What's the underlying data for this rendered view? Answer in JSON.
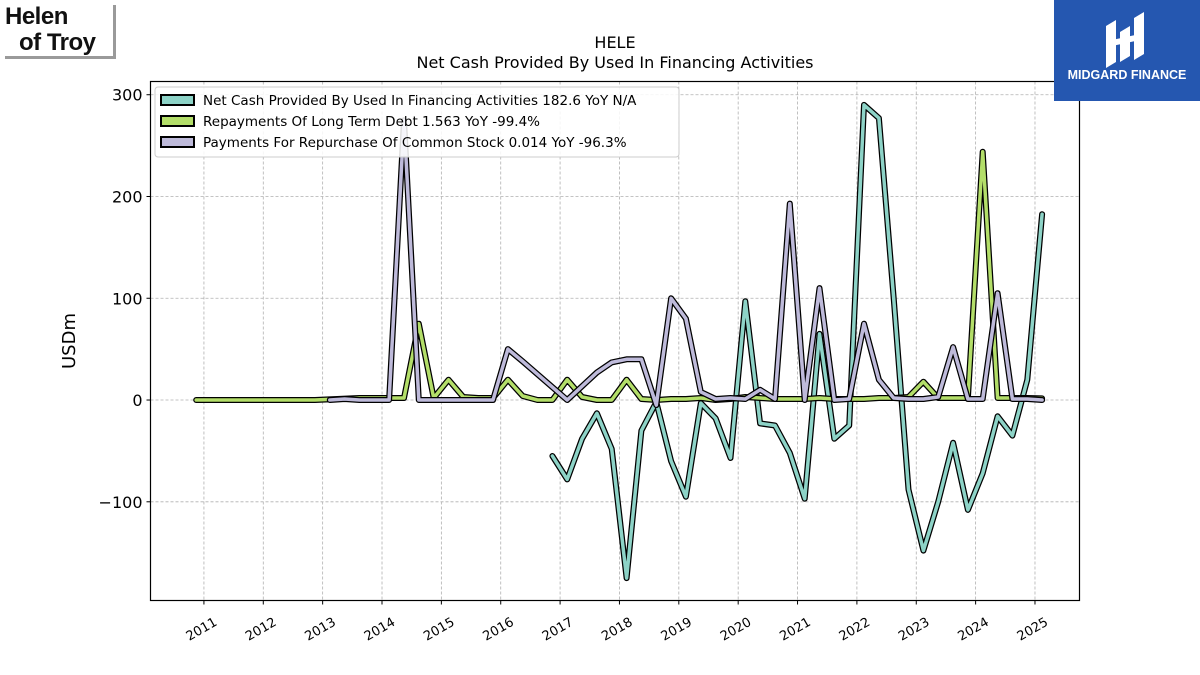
{
  "chart_data": {
    "type": "line",
    "title": "HELE",
    "subtitle": "Net Cash Provided By Used In Financing Activities",
    "ylabel": "USDm",
    "xlabel": "",
    "ylim": [
      -197,
      313
    ],
    "xlim": [
      2010.1,
      2025.75
    ],
    "yticks": [
      300,
      200,
      100,
      0,
      -100
    ],
    "ytick_labels": [
      "300",
      "200",
      "100",
      "0",
      "−100"
    ],
    "xticks": [
      2011,
      2012,
      2013,
      2014,
      2015,
      2016,
      2017,
      2018,
      2019,
      2020,
      2021,
      2022,
      2023,
      2024,
      2025
    ],
    "xtick_labels": [
      "2011",
      "2012",
      "2013",
      "2014",
      "2015",
      "2016",
      "2017",
      "2018",
      "2019",
      "2020",
      "2021",
      "2022",
      "2023",
      "2024",
      "2025"
    ],
    "grid": true,
    "legend_position": "top-left",
    "series": [
      {
        "name": "Net Cash Provided By Used In Financing Activities",
        "legend_label": "Net Cash Provided By Used In Financing Activities  182.6 YoY N/A",
        "color": "#8dd3c7",
        "points": [
          [
            2016.87,
            -55
          ],
          [
            2017.12,
            -78
          ],
          [
            2017.37,
            -38
          ],
          [
            2017.62,
            -13
          ],
          [
            2017.87,
            -48
          ],
          [
            2018.12,
            -175
          ],
          [
            2018.37,
            -30
          ],
          [
            2018.62,
            -2
          ],
          [
            2018.87,
            -60
          ],
          [
            2019.12,
            -95
          ],
          [
            2019.37,
            -3
          ],
          [
            2019.62,
            -18
          ],
          [
            2019.87,
            -57
          ],
          [
            2020.12,
            97
          ],
          [
            2020.37,
            -23
          ],
          [
            2020.62,
            -25
          ],
          [
            2020.87,
            -52
          ],
          [
            2021.12,
            -97
          ],
          [
            2021.37,
            65
          ],
          [
            2021.62,
            -38
          ],
          [
            2021.87,
            -25
          ],
          [
            2022.12,
            290
          ],
          [
            2022.37,
            277
          ],
          [
            2022.62,
            100
          ],
          [
            2022.87,
            -88
          ],
          [
            2023.12,
            -148
          ],
          [
            2023.37,
            -100
          ],
          [
            2023.62,
            -42
          ],
          [
            2023.87,
            -108
          ],
          [
            2024.12,
            -72
          ],
          [
            2024.37,
            -16
          ],
          [
            2024.62,
            -35
          ],
          [
            2024.87,
            20
          ],
          [
            2025.12,
            182.6
          ]
        ]
      },
      {
        "name": "Repayments Of Long Term Debt",
        "legend_label": "Repayments Of Long Term Debt  1.563 YoY -99.4%",
        "color": "#b3de69",
        "points": [
          [
            2010.87,
            0
          ],
          [
            2011.87,
            0
          ],
          [
            2012.87,
            0
          ],
          [
            2013.62,
            2
          ],
          [
            2014.37,
            2
          ],
          [
            2014.62,
            75
          ],
          [
            2014.87,
            2
          ],
          [
            2015.12,
            20
          ],
          [
            2015.37,
            3
          ],
          [
            2015.62,
            2
          ],
          [
            2015.87,
            2
          ],
          [
            2016.12,
            20
          ],
          [
            2016.37,
            4
          ],
          [
            2016.62,
            0
          ],
          [
            2016.87,
            0
          ],
          [
            2017.12,
            20
          ],
          [
            2017.37,
            3
          ],
          [
            2017.62,
            0
          ],
          [
            2017.87,
            0
          ],
          [
            2018.12,
            20
          ],
          [
            2018.37,
            1
          ],
          [
            2018.62,
            0
          ],
          [
            2018.87,
            1
          ],
          [
            2019.12,
            1
          ],
          [
            2019.37,
            2
          ],
          [
            2019.62,
            0
          ],
          [
            2019.87,
            1
          ],
          [
            2020.12,
            3
          ],
          [
            2020.37,
            2
          ],
          [
            2020.62,
            1
          ],
          [
            2020.87,
            1
          ],
          [
            2021.12,
            1
          ],
          [
            2021.37,
            2
          ],
          [
            2021.62,
            1
          ],
          [
            2021.87,
            1
          ],
          [
            2022.12,
            1
          ],
          [
            2022.37,
            2
          ],
          [
            2022.62,
            2
          ],
          [
            2022.87,
            3
          ],
          [
            2023.12,
            18
          ],
          [
            2023.37,
            2
          ],
          [
            2023.62,
            2
          ],
          [
            2023.87,
            2
          ],
          [
            2024.12,
            244
          ],
          [
            2024.37,
            2
          ],
          [
            2024.62,
            2
          ],
          [
            2024.87,
            2
          ],
          [
            2025.12,
            1.563
          ]
        ]
      },
      {
        "name": "Payments For Repurchase Of Common Stock",
        "legend_label": "Payments For Repurchase Of Common Stock  0.014 YoY -96.3%",
        "color": "#bebada",
        "points": [
          [
            2013.12,
            0
          ],
          [
            2013.37,
            1
          ],
          [
            2013.62,
            0
          ],
          [
            2013.87,
            0
          ],
          [
            2014.12,
            0
          ],
          [
            2014.37,
            275
          ],
          [
            2014.62,
            0
          ],
          [
            2014.87,
            0
          ],
          [
            2015.12,
            0
          ],
          [
            2015.37,
            0
          ],
          [
            2015.62,
            0
          ],
          [
            2015.87,
            0
          ],
          [
            2016.12,
            50
          ],
          [
            2016.37,
            38
          ],
          [
            2017.12,
            0
          ],
          [
            2017.62,
            27
          ],
          [
            2017.87,
            37
          ],
          [
            2018.12,
            40
          ],
          [
            2018.37,
            40
          ],
          [
            2018.62,
            -5
          ],
          [
            2018.87,
            100
          ],
          [
            2019.12,
            80
          ],
          [
            2019.37,
            8
          ],
          [
            2019.62,
            1
          ],
          [
            2019.87,
            2
          ],
          [
            2020.12,
            1
          ],
          [
            2020.37,
            10
          ],
          [
            2020.62,
            1
          ],
          [
            2020.87,
            193
          ],
          [
            2021.12,
            0
          ],
          [
            2021.37,
            110
          ],
          [
            2021.62,
            0
          ],
          [
            2021.87,
            1
          ],
          [
            2022.12,
            75
          ],
          [
            2022.37,
            20
          ],
          [
            2022.62,
            2
          ],
          [
            2022.87,
            1
          ],
          [
            2023.12,
            1
          ],
          [
            2023.37,
            3
          ],
          [
            2023.62,
            52
          ],
          [
            2023.87,
            1
          ],
          [
            2024.12,
            1
          ],
          [
            2024.37,
            105
          ],
          [
            2024.62,
            1
          ],
          [
            2024.87,
            1
          ],
          [
            2025.12,
            0.014
          ]
        ]
      }
    ]
  },
  "logos": {
    "left_line1": "Helen",
    "left_line2": "of Troy",
    "right_brand": "MIDGARD FINANCE"
  }
}
